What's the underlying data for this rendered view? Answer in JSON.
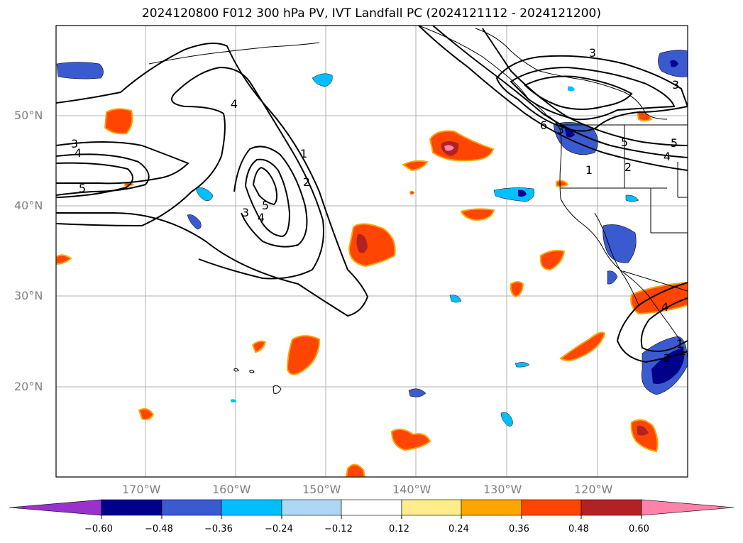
{
  "title": "2024120800 F012 300 hPa PV, IVT Landfall PC (2024121112 - 2024121200)",
  "map": {
    "lon_ticks": [
      "170°W",
      "160°W",
      "150°W",
      "140°W",
      "130°W",
      "120°W"
    ],
    "lat_ticks": [
      "50°N",
      "40°N",
      "30°N",
      "20°N"
    ],
    "contour_labels": [
      "3",
      "4",
      "5",
      "1",
      "2",
      "3",
      "4",
      "5",
      "1",
      "2",
      "3",
      "4",
      "5",
      "4",
      "3",
      "5",
      "1",
      "2",
      "6",
      "4",
      "1",
      "3"
    ],
    "colors": {
      "neg_060": "#9932cc",
      "neg_048": "#00008b",
      "neg_036": "#3a5bd0",
      "neg_024": "#00bfff",
      "neg_012": "#add8f5",
      "pos_012": "#ffec8b",
      "pos_024": "#ffa500",
      "pos_036": "#ff4500",
      "pos_048": "#b22222",
      "pos_060": "#ff82ab"
    }
  },
  "colorbar": {
    "labels": [
      "−0.60",
      "−0.48",
      "−0.36",
      "−0.24",
      "−0.12",
      "0.12",
      "0.24",
      "0.36",
      "0.48",
      "0.60"
    ],
    "colors": [
      "#9932cc",
      "#00008b",
      "#3a5bd0",
      "#00bfff",
      "#add8f5",
      "#ffffff",
      "#ffec8b",
      "#ffa500",
      "#ff4500",
      "#b22222",
      "#ff82ab"
    ]
  }
}
